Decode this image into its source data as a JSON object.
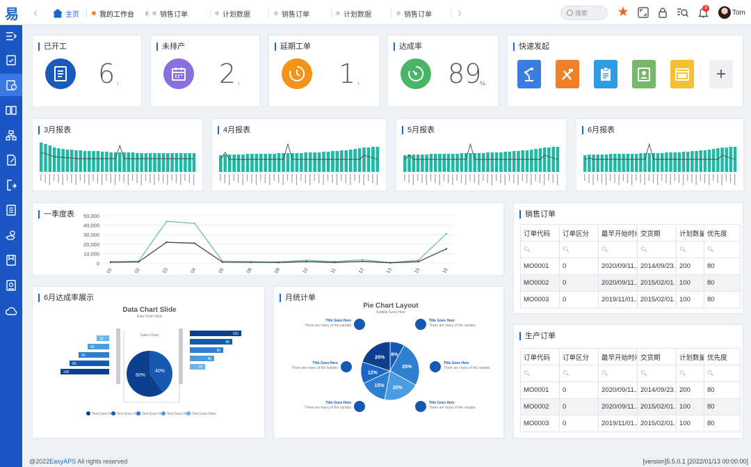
{
  "app": {
    "logo_text": "易"
  },
  "tabs": [
    {
      "label": "主页",
      "kind": "home"
    },
    {
      "label": "我的工作台",
      "kind": "active",
      "close": "x"
    },
    {
      "label": "销售订单"
    },
    {
      "label": "计划数据"
    },
    {
      "label": "销售订单"
    },
    {
      "label": "计划数据"
    },
    {
      "label": "销售订单"
    }
  ],
  "search": {
    "placeholder": "搜索"
  },
  "notifications": {
    "count": "3"
  },
  "user": {
    "name": "Tom"
  },
  "sidebar": {
    "icons": [
      "menu-toggle-icon",
      "clipboard-check-icon",
      "calendar-doc-icon",
      "book-icon",
      "hierarchy-icon",
      "edit-doc-icon",
      "import-icon",
      "list-doc-icon",
      "hand-coin-icon",
      "file-box-icon",
      "report-icon",
      "cloud-icon"
    ]
  },
  "kpis": [
    {
      "title": "已开工",
      "value": "6",
      "unit": "↑",
      "color": "#1a5ab8",
      "icon": "document-icon"
    },
    {
      "title": "未排产",
      "value": "2",
      "unit": "↑",
      "color": "#8a6fe0",
      "icon": "calendar-icon"
    },
    {
      "title": "延期工单",
      "value": "1",
      "unit": "↑",
      "color": "#f39215",
      "icon": "clock-icon"
    },
    {
      "title": "达成率",
      "value": "89",
      "unit": "%",
      "color": "#4ab566",
      "icon": "gauge-icon"
    }
  ],
  "quick_actions": {
    "title": "快速发起",
    "items": [
      {
        "icon": "robot-arm-icon",
        "color": "#3a7fe0"
      },
      {
        "icon": "tools-icon",
        "color": "#f07f2a"
      },
      {
        "icon": "clipboard-icon",
        "color": "#2f9be0"
      },
      {
        "icon": "user-card-icon",
        "color": "#78b86a"
      },
      {
        "icon": "window-icon",
        "color": "#f2c030"
      }
    ],
    "add_label": "+"
  },
  "monthly_reports": [
    {
      "title": "3月报表",
      "values": [
        42,
        40,
        38,
        35,
        34,
        33,
        32,
        32,
        31,
        31,
        30,
        30,
        30,
        30,
        29,
        29,
        28,
        28,
        28,
        28,
        28,
        28,
        27,
        27,
        27,
        27,
        27,
        27,
        27,
        27,
        27,
        27,
        27,
        27,
        27,
        27
      ],
      "line": [
        28,
        26,
        24,
        22,
        21,
        21,
        20,
        20,
        19,
        19,
        19,
        19,
        19,
        19,
        19,
        19,
        19,
        19,
        38,
        19,
        19,
        19,
        19,
        19,
        19,
        19,
        19,
        19,
        19,
        19,
        19,
        19,
        19,
        19,
        19,
        19
      ]
    },
    {
      "title": "4月报表",
      "values": [
        24,
        25,
        25,
        25,
        25,
        25,
        26,
        26,
        26,
        26,
        26,
        26,
        26,
        27,
        27,
        27,
        27,
        27,
        27,
        28,
        28,
        28,
        28,
        29,
        29,
        30,
        30,
        31,
        31,
        32,
        33,
        34,
        35,
        35,
        36,
        36
      ],
      "line": [
        18,
        28,
        18,
        18,
        18,
        18,
        18,
        18,
        18,
        18,
        18,
        18,
        18,
        18,
        18,
        40,
        18,
        18,
        18,
        18,
        18,
        18,
        18,
        18,
        18,
        18,
        18,
        18,
        18,
        18,
        18,
        18,
        24,
        22,
        20,
        18
      ]
    },
    {
      "title": "5月报表",
      "values": [
        24,
        25,
        25,
        25,
        25,
        25,
        26,
        26,
        26,
        26,
        26,
        26,
        26,
        27,
        27,
        27,
        27,
        27,
        27,
        28,
        28,
        28,
        28,
        29,
        29,
        30,
        30,
        31,
        31,
        32,
        33,
        34,
        35,
        35,
        36,
        36
      ],
      "line": [
        18,
        24,
        18,
        18,
        18,
        18,
        18,
        18,
        18,
        18,
        18,
        18,
        18,
        18,
        18,
        40,
        18,
        18,
        18,
        18,
        18,
        18,
        18,
        18,
        18,
        18,
        18,
        18,
        18,
        18,
        18,
        18,
        24,
        22,
        20,
        18
      ]
    },
    {
      "title": "6月报表",
      "values": [
        24,
        25,
        25,
        25,
        25,
        25,
        26,
        26,
        26,
        26,
        26,
        26,
        26,
        27,
        27,
        27,
        27,
        27,
        27,
        28,
        28,
        28,
        28,
        29,
        29,
        30,
        30,
        31,
        31,
        32,
        33,
        34,
        35,
        35,
        36,
        36
      ],
      "line": [
        18,
        20,
        18,
        18,
        18,
        18,
        18,
        18,
        18,
        18,
        18,
        18,
        18,
        18,
        18,
        40,
        18,
        18,
        18,
        18,
        18,
        18,
        18,
        18,
        18,
        18,
        18,
        18,
        18,
        18,
        18,
        18,
        24,
        22,
        20,
        18
      ]
    }
  ],
  "chart_data": {
    "type": "line",
    "title": "一季度表",
    "categories": [
      "01",
      "02",
      "03",
      "04",
      "05",
      "08",
      "09",
      "10",
      "11",
      "12",
      "13",
      "15",
      "16"
    ],
    "series": [
      {
        "color": "#6dbf9c",
        "values": [
          1500,
          2000,
          44000,
          42000,
          2000,
          1500,
          1200,
          3000,
          1500,
          3500,
          500,
          3000,
          31000
        ]
      },
      {
        "color": "#444444",
        "values": [
          800,
          1200,
          22000,
          21000,
          1000,
          800,
          700,
          1500,
          700,
          1800,
          300,
          1500,
          15000
        ]
      }
    ],
    "yticks": [
      "50,000",
      "40,000",
      "30,000",
      "20,000",
      "10,000",
      "0"
    ],
    "ylim": [
      0,
      50000
    ],
    "grid": true
  },
  "achievement": {
    "title": "6月达成率展示",
    "slide_title": "Data Chart Slide",
    "slide_sub": "Data Chart Style",
    "center_label": "Sales Chart",
    "pie_labels": [
      "60%",
      "40%"
    ],
    "legend": [
      "Text Goes Here",
      "Text Goes Here",
      "Text Goes Here",
      "Text Goes Here",
      "Text Goes Here"
    ],
    "left_bars": [
      "20",
      "40",
      "60",
      "80",
      "100"
    ],
    "right_bars": [
      "100",
      "80",
      "60",
      "40",
      "20"
    ]
  },
  "monthly_orders": {
    "title": "月统计单",
    "chart_title": "Pie Chart Layout",
    "chart_sub": "Subtitle Goes Here",
    "slices": [
      "8%",
      "25%",
      "20%",
      "15%",
      "12%",
      "20%"
    ],
    "callout_title": "Title Goes Here",
    "callout_text": "There are many of the variations passages lorem ipsum available majority have suffered"
  },
  "sales_orders": {
    "title": "销售订单",
    "columns": [
      "订单代码",
      "订单区分",
      "最早开始时间",
      "交货期",
      "计划数量",
      "优先度"
    ],
    "rows": [
      [
        "MO0001",
        "0",
        "2020/09/11...",
        "2014/09/23...",
        "200",
        "80"
      ],
      [
        "MO0002",
        "0",
        "2020/09/11...",
        "2015/02/01...",
        "100",
        "80"
      ],
      [
        "MO0003",
        "0",
        "2019/11/01...",
        "2015/02/01...",
        "100",
        "80"
      ]
    ]
  },
  "production_orders": {
    "title": "生产订单",
    "columns": [
      "订单代码",
      "订单区分",
      "最早开始时间",
      "交货期",
      "计划数量",
      "优先度"
    ],
    "rows": [
      [
        "MO0001",
        "0",
        "2020/09/11...",
        "2014/09/23...",
        "200",
        "80"
      ],
      [
        "MO0002",
        "0",
        "2020/09/11...",
        "2015/02/01...",
        "100",
        "80"
      ],
      [
        "MO0003",
        "0",
        "2019/11/01...",
        "2015/02/01...",
        "100",
        "80"
      ]
    ]
  },
  "footer": {
    "prefix": "@2022",
    "brand": "EasyAPS",
    "suffix": " All rights reserved",
    "version": "[version]5.5.0.1 [2022/01/13 00:00:00]"
  }
}
